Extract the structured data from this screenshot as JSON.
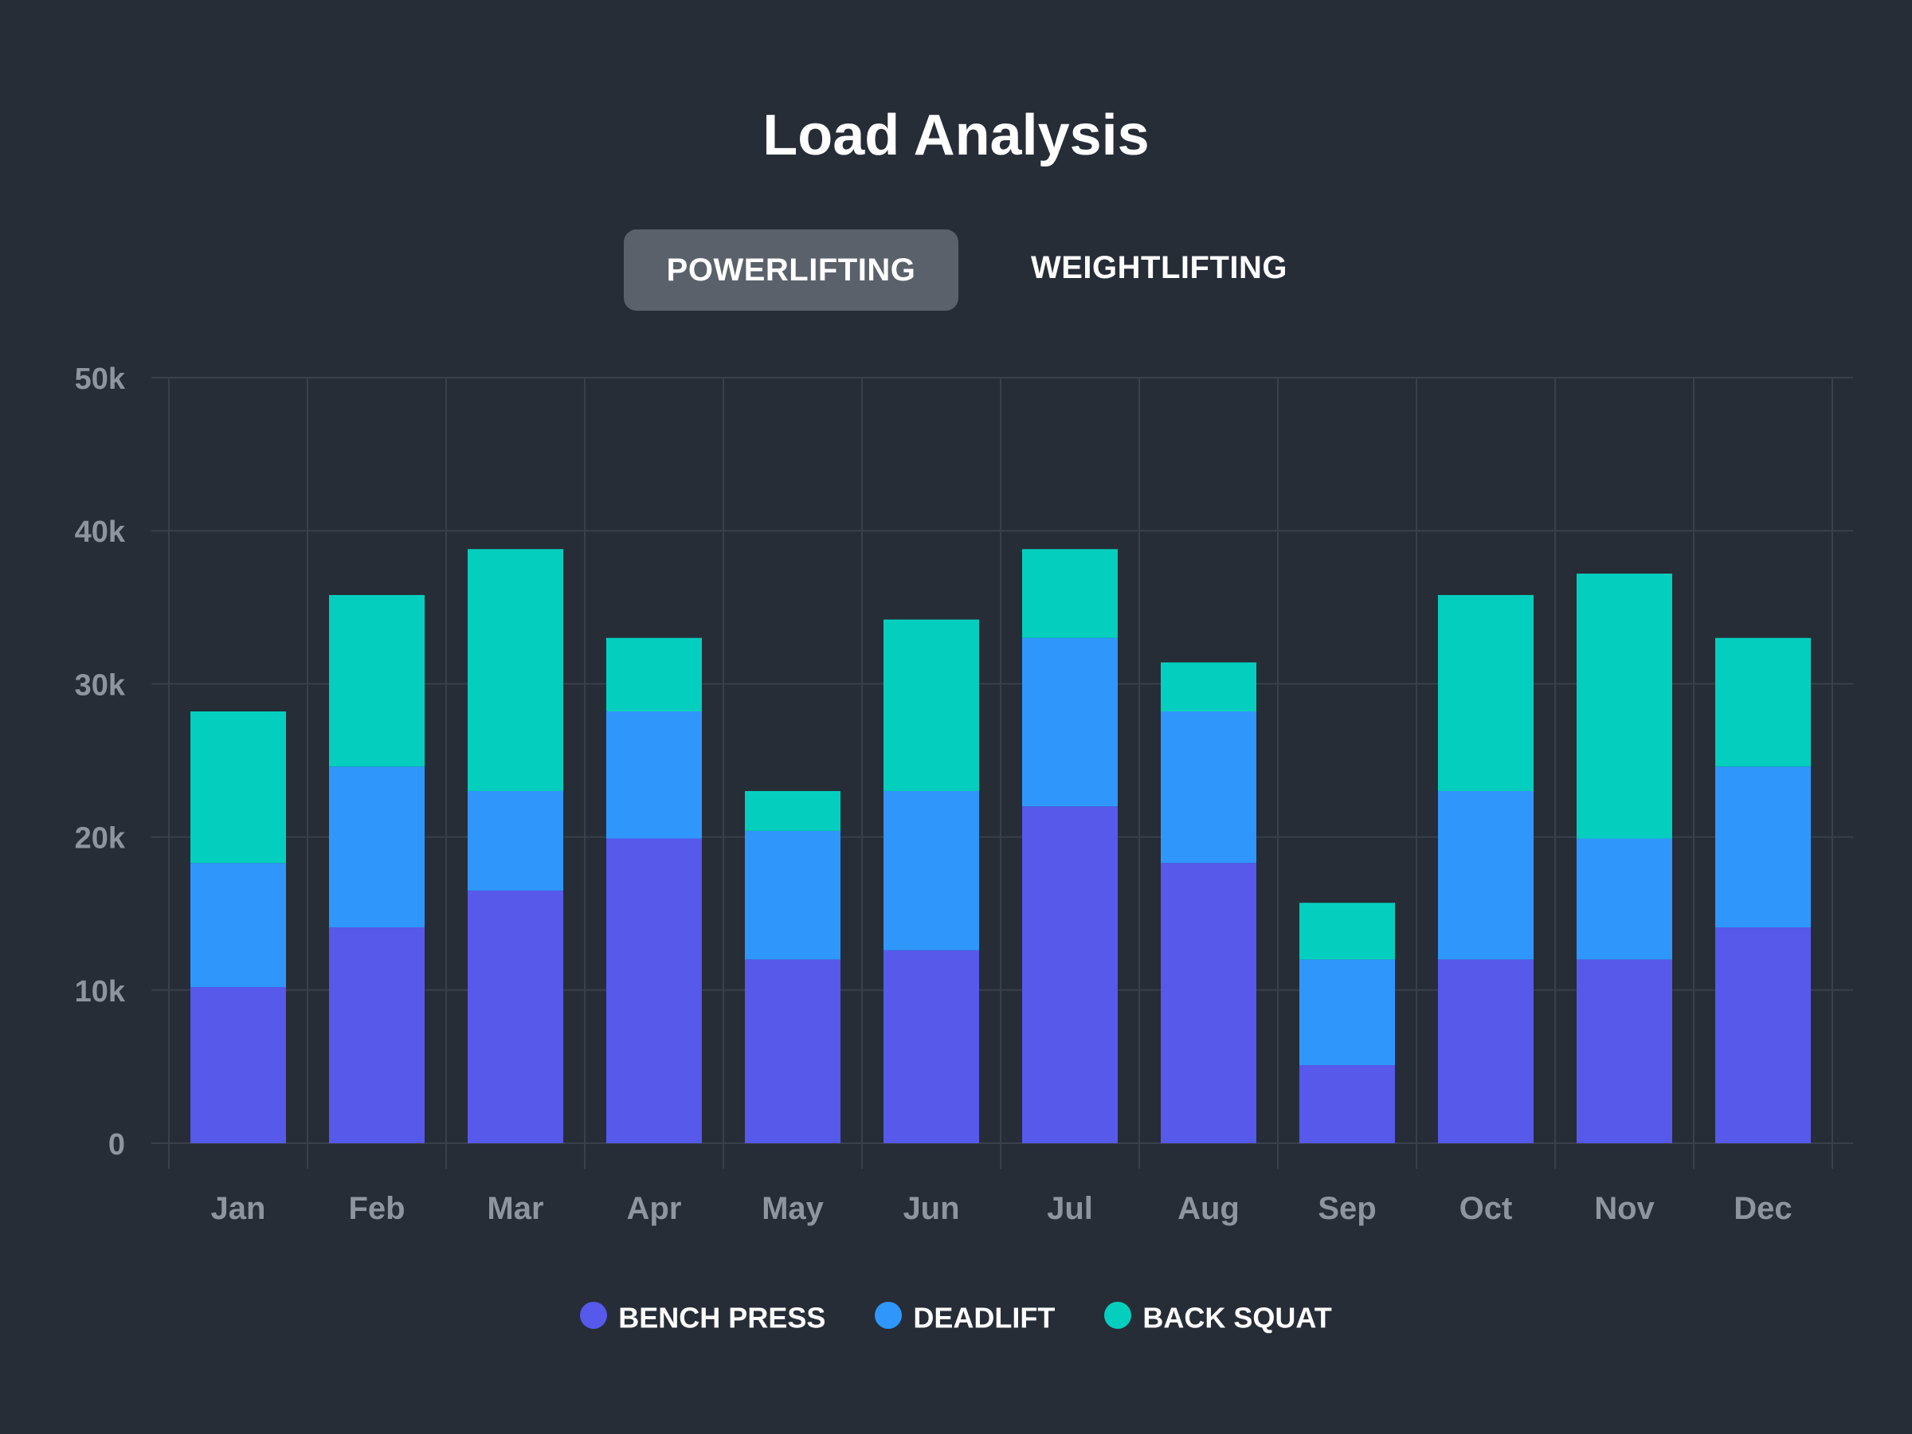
{
  "colors": {
    "background": "#262d37",
    "grid": "#39404a",
    "tick_text": "#8f959e",
    "bench_press": "#5659ea",
    "deadlift": "#2f97fb",
    "back_squat": "#04cfbe",
    "tab_active_bg": "#5a616a"
  },
  "tabs": [
    {
      "label": "POWERLIFTING",
      "active": true
    },
    {
      "label": "WEIGHTLIFTING",
      "active": false
    }
  ],
  "chart_data": {
    "type": "bar",
    "stacked": true,
    "title": "Load Analysis",
    "xlabel": "",
    "ylabel": "",
    "categories": [
      "Jan",
      "Feb",
      "Mar",
      "Apr",
      "May",
      "Jun",
      "Jul",
      "Aug",
      "Sep",
      "Oct",
      "Nov",
      "Dec"
    ],
    "ylim": [
      0,
      50000
    ],
    "yticks": [
      0,
      10000,
      20000,
      30000,
      40000,
      50000
    ],
    "ytick_labels": [
      "0",
      "10k",
      "20k",
      "30k",
      "40k",
      "50k"
    ],
    "grid": true,
    "legend_position": "bottom",
    "series": [
      {
        "name": "BENCH PRESS",
        "color": "#5659ea",
        "values": [
          10200,
          14100,
          16500,
          19900,
          12000,
          12600,
          22000,
          18300,
          5100,
          12000,
          12000,
          14100
        ]
      },
      {
        "name": "DEADLIFT",
        "color": "#2f97fb",
        "values": [
          8100,
          10500,
          6500,
          8300,
          8400,
          10400,
          11000,
          9900,
          6900,
          11000,
          7900,
          10500
        ]
      },
      {
        "name": "BACK SQUAT",
        "color": "#04cfbe",
        "values": [
          9900,
          11200,
          15800,
          4800,
          2600,
          11200,
          5800,
          3200,
          3700,
          12800,
          17300,
          8400
        ]
      }
    ]
  }
}
